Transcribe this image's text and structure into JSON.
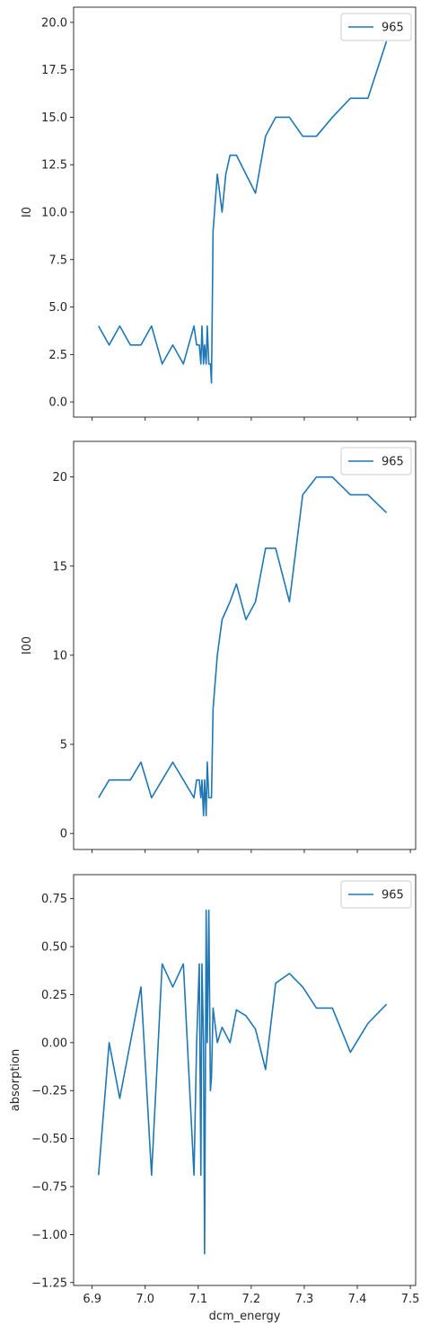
{
  "chart_data": [
    {
      "type": "line",
      "ylabel": "I0",
      "xlabel": "",
      "xlim": [
        6.865,
        7.51
      ],
      "ylim": [
        -0.8,
        20.8
      ],
      "yticks": [
        0.0,
        2.5,
        5.0,
        7.5,
        10.0,
        12.5,
        15.0,
        17.5,
        20.0
      ],
      "ytick_labels": [
        "0.0",
        "2.5",
        "5.0",
        "7.5",
        "10.0",
        "12.5",
        "15.0",
        "17.5",
        "20.0"
      ],
      "xticks": [
        6.9,
        7.0,
        7.1,
        7.2,
        7.3,
        7.4,
        7.5
      ],
      "show_xtick_labels": false,
      "legend": {
        "label": "965",
        "position": "top-right"
      },
      "color": "#1f77b4",
      "series": [
        {
          "name": "965",
          "x": [
            6.912,
            6.932,
            6.952,
            6.972,
            6.992,
            7.012,
            7.032,
            7.052,
            7.072,
            7.092,
            7.097,
            7.102,
            7.105,
            7.107,
            7.11,
            7.112,
            7.115,
            7.117,
            7.12,
            7.123,
            7.125,
            7.128,
            7.136,
            7.145,
            7.152,
            7.16,
            7.172,
            7.19,
            7.208,
            7.227,
            7.246,
            7.272,
            7.297,
            7.323,
            7.353,
            7.387,
            7.42,
            7.455
          ],
          "values": [
            4,
            3,
            4,
            3,
            3,
            4,
            2,
            3,
            2,
            4,
            3,
            3,
            2,
            4,
            2,
            3,
            2,
            4,
            2,
            2,
            1,
            9,
            12,
            10,
            12,
            13,
            13,
            12,
            11,
            14,
            15,
            15,
            14,
            14,
            15,
            16,
            16,
            19
          ]
        }
      ]
    },
    {
      "type": "line",
      "ylabel": "I00",
      "xlabel": "",
      "xlim": [
        6.865,
        7.51
      ],
      "ylim": [
        -0.9,
        22.0
      ],
      "yticks": [
        0,
        5,
        10,
        15,
        20
      ],
      "ytick_labels": [
        "0",
        "5",
        "10",
        "15",
        "20"
      ],
      "xticks": [
        6.9,
        7.0,
        7.1,
        7.2,
        7.3,
        7.4,
        7.5
      ],
      "show_xtick_labels": false,
      "legend": {
        "label": "965",
        "position": "top-right"
      },
      "color": "#1f77b4",
      "series": [
        {
          "name": "965",
          "x": [
            6.912,
            6.932,
            6.952,
            6.972,
            6.992,
            7.012,
            7.032,
            7.052,
            7.072,
            7.092,
            7.097,
            7.102,
            7.105,
            7.107,
            7.11,
            7.112,
            7.115,
            7.117,
            7.12,
            7.123,
            7.125,
            7.128,
            7.136,
            7.145,
            7.16,
            7.172,
            7.19,
            7.208,
            7.227,
            7.246,
            7.272,
            7.297,
            7.323,
            7.353,
            7.387,
            7.42,
            7.455
          ],
          "values": [
            2,
            3,
            3,
            3,
            4,
            2,
            3,
            4,
            3,
            2,
            3,
            3,
            2,
            3,
            1,
            3,
            1,
            4,
            2,
            2,
            2,
            7,
            10,
            12,
            13,
            14,
            12,
            13,
            16,
            16,
            13,
            19,
            20,
            20,
            19,
            19,
            18
          ]
        }
      ]
    },
    {
      "type": "line",
      "ylabel": "absorption",
      "xlabel": "dcm_energy",
      "xlim": [
        6.865,
        7.51
      ],
      "ylim": [
        -1.265,
        0.875
      ],
      "yticks": [
        -1.25,
        -1.0,
        -0.75,
        -0.5,
        -0.25,
        0.0,
        0.25,
        0.5,
        0.75
      ],
      "ytick_labels": [
        "−1.25",
        "−1.00",
        "−0.75",
        "−0.50",
        "−0.25",
        "0.00",
        "0.25",
        "0.50",
        "0.75"
      ],
      "xticks": [
        6.9,
        7.0,
        7.1,
        7.2,
        7.3,
        7.4,
        7.5
      ],
      "xtick_labels": [
        "6.9",
        "7.0",
        "7.1",
        "7.2",
        "7.3",
        "7.4",
        "7.5"
      ],
      "show_xtick_labels": true,
      "legend": {
        "label": "965",
        "position": "top-right"
      },
      "color": "#1f77b4",
      "series": [
        {
          "name": "965",
          "x": [
            6.912,
            6.932,
            6.952,
            6.972,
            6.992,
            7.012,
            7.032,
            7.052,
            7.072,
            7.092,
            7.097,
            7.102,
            7.105,
            7.107,
            7.11,
            7.112,
            7.115,
            7.117,
            7.12,
            7.123,
            7.125,
            7.128,
            7.136,
            7.145,
            7.16,
            7.172,
            7.19,
            7.208,
            7.227,
            7.246,
            7.272,
            7.297,
            7.323,
            7.353,
            7.387,
            7.42,
            7.455
          ],
          "values": [
            -0.69,
            0.0,
            -0.29,
            0.0,
            0.29,
            -0.69,
            0.41,
            0.29,
            0.41,
            -0.69,
            0.0,
            0.41,
            -0.69,
            0.41,
            0.0,
            -1.1,
            0.69,
            0.0,
            0.69,
            -0.25,
            -0.18,
            0.18,
            0.0,
            0.08,
            0.0,
            0.17,
            0.14,
            0.07,
            -0.14,
            0.31,
            0.36,
            0.29,
            0.18,
            0.18,
            -0.05,
            0.1,
            0.2
          ]
        }
      ]
    }
  ]
}
